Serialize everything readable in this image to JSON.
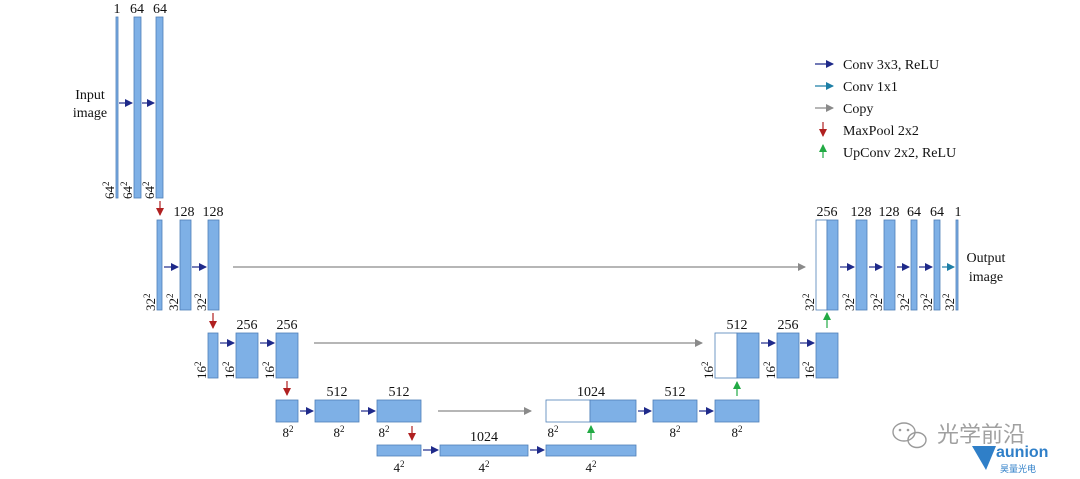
{
  "legend": {
    "conv3": "Conv 3x3, ReLU",
    "conv1": "Conv 1x1",
    "copy": "Copy",
    "maxpool": "MaxPool 2x2",
    "upconv": "UpConv 2x2, ReLU"
  },
  "input_label": [
    "Input",
    "image"
  ],
  "output_label": [
    "Output",
    "image"
  ],
  "top_labels": [
    {
      "id": "l1a",
      "t": "1"
    },
    {
      "id": "l1b",
      "t": "64"
    },
    {
      "id": "l1c",
      "t": "64"
    },
    {
      "id": "l2a",
      "t": "128"
    },
    {
      "id": "l2b",
      "t": "128"
    },
    {
      "id": "l3a",
      "t": "256"
    },
    {
      "id": "l3b",
      "t": "256"
    },
    {
      "id": "l4a",
      "t": "512"
    },
    {
      "id": "l4b",
      "t": "512"
    },
    {
      "id": "l5a",
      "t": "1024"
    },
    {
      "id": "u4a",
      "t": "1024"
    },
    {
      "id": "u4b",
      "t": "512"
    },
    {
      "id": "u3a",
      "t": "512"
    },
    {
      "id": "u3b",
      "t": "256"
    },
    {
      "id": "u1a",
      "t": "256"
    },
    {
      "id": "u1b",
      "t": "128"
    },
    {
      "id": "u1c",
      "t": "128"
    },
    {
      "id": "u1d",
      "t": "64"
    },
    {
      "id": "u1e",
      "t": "64"
    },
    {
      "id": "u1f",
      "t": "1"
    }
  ],
  "res": {
    "r64": "64",
    "r32": "32",
    "r16": "16",
    "r8": "8",
    "r4": "4",
    "sq": "2"
  },
  "watermark": {
    "channel": "光学前沿",
    "brand": "aunion",
    "brand_cn": "昊量光电"
  },
  "colors": {
    "block": "#7eb0e6",
    "conv3": "#1f2a8a",
    "conv1": "#1e7fa6",
    "copy": "#8a8a8a",
    "maxpool": "#b02020",
    "upconv": "#22aa44"
  }
}
